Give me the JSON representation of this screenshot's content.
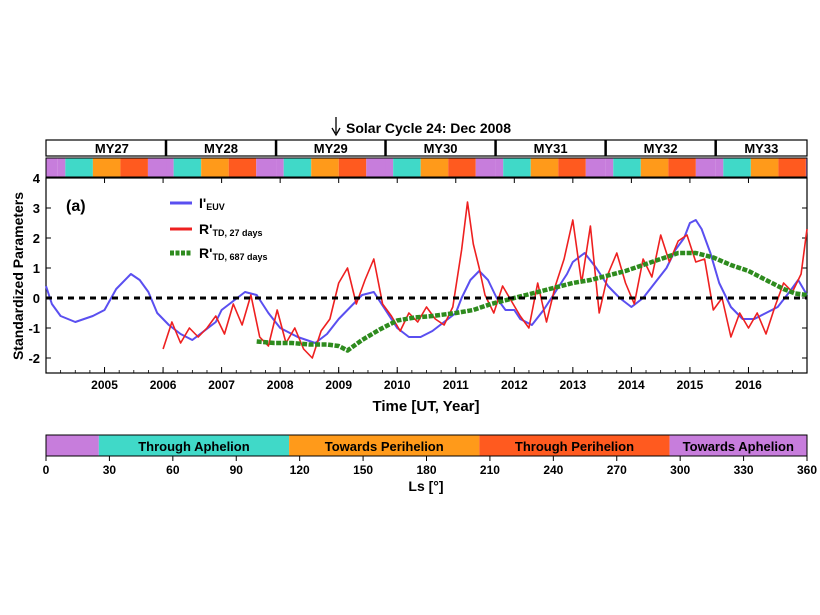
{
  "chart_data": {
    "type": "line",
    "title": "Solar Cycle 24: Dec 2008",
    "panel_label": "(a)",
    "xlabel": "Time  [UT, Year]",
    "ylabel": "Standardized Parameters",
    "xlim": [
      2004.0,
      2017.0
    ],
    "ylim": [
      -2.5,
      4.0
    ],
    "x_ticks": [
      "2005",
      "2006",
      "2007",
      "2008",
      "2009",
      "2010",
      "2011",
      "2012",
      "2013",
      "2014",
      "2015",
      "2016"
    ],
    "y_ticks": [
      "-2",
      "-1",
      "0",
      "1",
      "2",
      "3",
      "4"
    ],
    "zero_line": 0,
    "solar_min_marker": 2008.95,
    "mars_years": [
      {
        "label": "MY27",
        "start": 2004.2,
        "end": 2006.05
      },
      {
        "label": "MY28",
        "start": 2006.05,
        "end": 2007.93
      },
      {
        "label": "MY29",
        "start": 2007.93,
        "end": 2009.8
      },
      {
        "label": "MY30",
        "start": 2009.8,
        "end": 2011.68
      },
      {
        "label": "MY31",
        "start": 2011.68,
        "end": 2013.56
      },
      {
        "label": "MY32",
        "start": 2013.56,
        "end": 2015.44
      },
      {
        "label": "MY33",
        "start": 2015.44,
        "end": 2017.0
      }
    ],
    "series": [
      {
        "name": "I'",
        "sub": "EUV",
        "color": "#5a4ff0",
        "x": [
          2004.0,
          2004.1,
          2004.25,
          2004.5,
          2004.8,
          2005.0,
          2005.2,
          2005.45,
          2005.6,
          2005.75,
          2005.9,
          2006.1,
          2006.3,
          2006.5,
          2006.7,
          2006.9,
          2007.0,
          2007.2,
          2007.4,
          2007.6,
          2007.8,
          2008.0,
          2008.3,
          2008.6,
          2008.8,
          2009.0,
          2009.2,
          2009.4,
          2009.6,
          2009.8,
          2010.0,
          2010.2,
          2010.4,
          2010.6,
          2010.8,
          2011.0,
          2011.1,
          2011.25,
          2011.4,
          2011.55,
          2011.7,
          2011.85,
          2012.0,
          2012.1,
          2012.3,
          2012.5,
          2012.7,
          2012.9,
          2013.0,
          2013.2,
          2013.4,
          2013.6,
          2013.8,
          2014.0,
          2014.2,
          2014.4,
          2014.6,
          2014.75,
          2014.9,
          2015.0,
          2015.1,
          2015.2,
          2015.35,
          2015.5,
          2015.7,
          2015.9,
          2016.1,
          2016.3,
          2016.5,
          2016.7,
          2016.85,
          2017.0
        ],
        "y": [
          0.4,
          -0.2,
          -0.6,
          -0.8,
          -0.6,
          -0.4,
          0.3,
          0.8,
          0.6,
          0.2,
          -0.5,
          -0.9,
          -1.2,
          -1.4,
          -1.1,
          -0.8,
          -0.4,
          -0.1,
          0.2,
          0.1,
          -0.5,
          -1.0,
          -1.3,
          -1.5,
          -1.2,
          -0.7,
          -0.3,
          0.1,
          0.2,
          -0.4,
          -1.0,
          -1.3,
          -1.3,
          -1.1,
          -0.8,
          -0.5,
          0.0,
          0.6,
          0.9,
          0.6,
          0.0,
          -0.4,
          -0.4,
          -0.7,
          -0.9,
          -0.4,
          0.2,
          0.8,
          1.2,
          1.5,
          1.0,
          0.4,
          0.0,
          -0.3,
          0.0,
          0.5,
          1.0,
          1.6,
          2.0,
          2.5,
          2.6,
          2.3,
          1.5,
          0.5,
          -0.3,
          -0.7,
          -0.7,
          -0.5,
          -0.3,
          0.2,
          0.6,
          0.1
        ]
      },
      {
        "name": "R'",
        "sub": "TD, 27 days",
        "color": "#ee2020",
        "x": [
          2006.0,
          2006.15,
          2006.3,
          2006.45,
          2006.6,
          2006.75,
          2006.9,
          2007.05,
          2007.2,
          2007.35,
          2007.5,
          2007.65,
          2007.8,
          2007.95,
          2008.1,
          2008.25,
          2008.4,
          2008.55,
          2008.7,
          2008.85,
          2009.0,
          2009.15,
          2009.3,
          2009.45,
          2009.6,
          2009.75,
          2009.9,
          2010.05,
          2010.2,
          2010.35,
          2010.5,
          2010.65,
          2010.8,
          2010.95,
          2011.1,
          2011.2,
          2011.3,
          2011.4,
          2011.5,
          2011.65,
          2011.8,
          2011.95,
          2012.1,
          2012.25,
          2012.4,
          2012.55,
          2012.7,
          2012.85,
          2013.0,
          2013.15,
          2013.3,
          2013.45,
          2013.6,
          2013.75,
          2013.9,
          2014.05,
          2014.2,
          2014.35,
          2014.5,
          2014.65,
          2014.8,
          2014.95,
          2015.1,
          2015.25,
          2015.4,
          2015.55,
          2015.7,
          2015.85,
          2016.0,
          2016.15,
          2016.3,
          2016.45,
          2016.6,
          2016.75,
          2016.9,
          2017.0
        ],
        "y": [
          -1.7,
          -0.8,
          -1.5,
          -1.0,
          -1.3,
          -1.0,
          -0.6,
          -1.2,
          -0.2,
          -0.9,
          0.1,
          -1.3,
          -1.6,
          -0.4,
          -1.5,
          -1.0,
          -1.7,
          -2.0,
          -1.1,
          -0.7,
          0.5,
          1.0,
          -0.2,
          0.6,
          1.3,
          -0.2,
          -0.6,
          -1.1,
          -0.5,
          -0.8,
          -0.3,
          -0.7,
          -0.9,
          -0.3,
          1.6,
          3.2,
          1.8,
          1.0,
          0.1,
          -0.5,
          0.4,
          -0.1,
          -0.6,
          -1.0,
          0.5,
          -0.8,
          0.4,
          1.3,
          2.6,
          0.5,
          2.4,
          -0.5,
          0.8,
          1.5,
          0.5,
          -0.2,
          1.3,
          0.7,
          2.1,
          1.2,
          1.9,
          2.1,
          1.2,
          1.3,
          -0.4,
          0.0,
          -1.3,
          -0.5,
          -1.0,
          -0.5,
          -1.2,
          -0.3,
          0.5,
          0.2,
          0.8,
          2.3
        ]
      },
      {
        "name": "R'",
        "sub": "TD, 687 days",
        "color": "#2e8b1e",
        "x": [
          2007.6,
          2007.9,
          2008.2,
          2008.5,
          2008.8,
          2009.0,
          2009.15,
          2009.4,
          2009.7,
          2010.0,
          2010.3,
          2010.6,
          2011.0,
          2011.3,
          2011.6,
          2011.9,
          2012.2,
          2012.5,
          2012.8,
          2013.0,
          2013.3,
          2013.6,
          2013.9,
          2014.2,
          2014.5,
          2014.8,
          2015.1,
          2015.4,
          2015.7,
          2016.0,
          2016.3,
          2016.6,
          2016.8,
          2017.0
        ],
        "y": [
          -1.45,
          -1.5,
          -1.5,
          -1.55,
          -1.55,
          -1.6,
          -1.75,
          -1.4,
          -1.05,
          -0.75,
          -0.65,
          -0.6,
          -0.5,
          -0.4,
          -0.2,
          -0.05,
          0.1,
          0.25,
          0.4,
          0.5,
          0.6,
          0.75,
          0.9,
          1.1,
          1.3,
          1.5,
          1.5,
          1.35,
          1.1,
          0.9,
          0.6,
          0.3,
          0.15,
          0.1
        ]
      }
    ]
  },
  "ls_bar": {
    "segments": [
      {
        "label": "",
        "start": 0,
        "end": 25,
        "color": "#c77ddc"
      },
      {
        "label": "Through Aphelion",
        "start": 25,
        "end": 115,
        "color": "#40d9c8"
      },
      {
        "label": "Towards Perihelion",
        "start": 115,
        "end": 205,
        "color": "#ff9a1a"
      },
      {
        "label": "Through Perihelion",
        "start": 205,
        "end": 295,
        "color": "#ff5a1f"
      },
      {
        "label": "Towards Aphelion",
        "start": 295,
        "end": 360,
        "color": "#c77ddc"
      }
    ],
    "ticks": [
      "0",
      "30",
      "60",
      "90",
      "120",
      "150",
      "180",
      "210",
      "240",
      "270",
      "300",
      "330",
      "360"
    ],
    "xlabel": "Ls [°]"
  }
}
